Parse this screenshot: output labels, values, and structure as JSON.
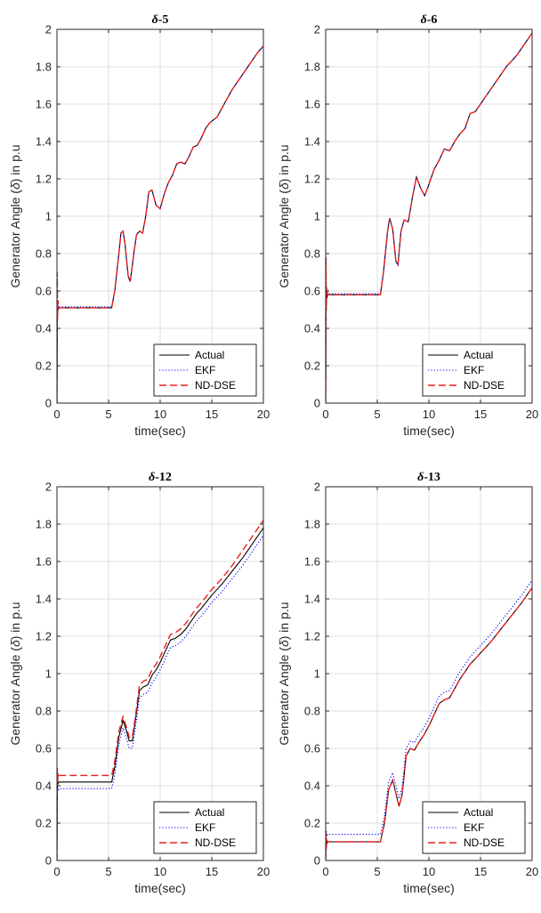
{
  "chart_data": [
    {
      "type": "line",
      "title_symbol": "δ",
      "title_suffix": "-5",
      "ylabel_pre": "Generator Angle (",
      "ylabel_symbol": "δ",
      "ylabel_post": ") in p.u",
      "xlabel": "time(sec)",
      "xlim": [
        0,
        20
      ],
      "ylim": [
        0,
        2
      ],
      "xticks": [
        0,
        5,
        10,
        15,
        20
      ],
      "yticks": [
        0,
        0.2,
        0.4,
        0.6,
        0.8,
        1,
        1.2,
        1.4,
        1.6,
        1.8,
        2
      ],
      "grid": true,
      "legend_position": "bottom-right",
      "series": [
        {
          "name": "Actual",
          "color": "#000000",
          "dash": "solid",
          "x": [
            0,
            0.05,
            0.1,
            0.2,
            5.3,
            5.6,
            6.0,
            6.2,
            6.4,
            6.6,
            6.9,
            7.1,
            7.4,
            7.7,
            8.0,
            8.3,
            8.6,
            8.9,
            9.2,
            9.6,
            10.0,
            10.4,
            10.8,
            11.2,
            11.6,
            12.0,
            12.4,
            12.8,
            13.2,
            13.6,
            14.0,
            14.4,
            14.8,
            15.5,
            16.0,
            16.5,
            17.0,
            17.5,
            18.0,
            18.5,
            19.0,
            19.5,
            20
          ],
          "y": [
            0.0,
            0.53,
            0.5,
            0.51,
            0.51,
            0.6,
            0.8,
            0.91,
            0.92,
            0.85,
            0.68,
            0.65,
            0.78,
            0.9,
            0.92,
            0.91,
            1.0,
            1.13,
            1.14,
            1.06,
            1.04,
            1.12,
            1.18,
            1.22,
            1.28,
            1.29,
            1.28,
            1.32,
            1.37,
            1.38,
            1.42,
            1.47,
            1.5,
            1.53,
            1.58,
            1.63,
            1.68,
            1.72,
            1.76,
            1.8,
            1.84,
            1.88,
            1.91
          ]
        },
        {
          "name": "EKF",
          "color": "#0000ff",
          "dash": "dotted",
          "x": [
            0,
            0.05,
            0.1,
            0.2,
            5.3,
            5.6,
            6.0,
            6.2,
            6.4,
            6.6,
            6.9,
            7.1,
            7.4,
            7.7,
            8.0,
            8.3,
            8.6,
            8.9,
            9.2,
            9.6,
            10.0,
            10.4,
            10.8,
            11.2,
            11.6,
            12.0,
            12.4,
            12.8,
            13.2,
            13.6,
            14.0,
            14.4,
            14.8,
            15.5,
            16.0,
            16.5,
            17.0,
            17.5,
            18.0,
            18.5,
            19.0,
            19.5,
            20
          ],
          "y": [
            0.0,
            0.55,
            0.5,
            0.515,
            0.515,
            0.6,
            0.8,
            0.91,
            0.92,
            0.85,
            0.68,
            0.65,
            0.78,
            0.9,
            0.92,
            0.91,
            1.0,
            1.13,
            1.14,
            1.06,
            1.04,
            1.12,
            1.18,
            1.22,
            1.28,
            1.29,
            1.28,
            1.32,
            1.37,
            1.38,
            1.42,
            1.47,
            1.5,
            1.53,
            1.58,
            1.63,
            1.68,
            1.72,
            1.76,
            1.8,
            1.84,
            1.88,
            1.91
          ]
        },
        {
          "name": "ND-DSE",
          "color": "#e8201f",
          "dash": "dashed",
          "x": [
            0,
            0.03,
            0.06,
            0.1,
            0.2,
            5.3,
            5.6,
            6.0,
            6.2,
            6.4,
            6.6,
            6.9,
            7.1,
            7.4,
            7.7,
            8.0,
            8.3,
            8.6,
            8.9,
            9.2,
            9.6,
            10.0,
            10.4,
            10.8,
            11.2,
            11.6,
            12.0,
            12.4,
            12.8,
            13.2,
            13.6,
            14.0,
            14.4,
            14.8,
            15.5,
            16.0,
            16.5,
            17.0,
            17.5,
            18.0,
            18.5,
            19.0,
            19.5,
            20
          ],
          "y": [
            0.0,
            0.7,
            0.45,
            0.55,
            0.51,
            0.51,
            0.6,
            0.8,
            0.91,
            0.92,
            0.85,
            0.68,
            0.65,
            0.78,
            0.9,
            0.92,
            0.91,
            1.0,
            1.13,
            1.14,
            1.06,
            1.04,
            1.12,
            1.18,
            1.22,
            1.28,
            1.29,
            1.28,
            1.32,
            1.37,
            1.38,
            1.42,
            1.47,
            1.5,
            1.53,
            1.58,
            1.63,
            1.68,
            1.72,
            1.76,
            1.8,
            1.84,
            1.88,
            1.91
          ]
        }
      ]
    },
    {
      "type": "line",
      "title_symbol": "δ",
      "title_suffix": "-6",
      "ylabel_pre": "Generator Angle (",
      "ylabel_symbol": "δ",
      "ylabel_post": ") in p.u",
      "xlabel": "time(sec)",
      "xlim": [
        0,
        20
      ],
      "ylim": [
        0,
        2
      ],
      "xticks": [
        0,
        5,
        10,
        15,
        20
      ],
      "yticks": [
        0,
        0.2,
        0.4,
        0.6,
        0.8,
        1,
        1.2,
        1.4,
        1.6,
        1.8,
        2
      ],
      "grid": true,
      "legend_position": "bottom-right",
      "series": [
        {
          "name": "Actual",
          "color": "#000000",
          "dash": "solid",
          "x": [
            0,
            0.05,
            0.1,
            0.2,
            5.3,
            5.6,
            6.0,
            6.2,
            6.5,
            6.8,
            7.0,
            7.3,
            7.6,
            8.0,
            8.4,
            8.8,
            9.2,
            9.6,
            10.0,
            10.5,
            11.0,
            11.5,
            12.0,
            12.5,
            13.0,
            13.5,
            14.0,
            14.5,
            15.0,
            15.5,
            16.0,
            16.5,
            17.0,
            17.5,
            18.0,
            18.5,
            19.0,
            19.5,
            20
          ],
          "y": [
            0.0,
            0.6,
            0.56,
            0.58,
            0.58,
            0.7,
            0.92,
            0.99,
            0.93,
            0.76,
            0.74,
            0.92,
            0.98,
            0.97,
            1.1,
            1.21,
            1.15,
            1.11,
            1.17,
            1.25,
            1.3,
            1.36,
            1.35,
            1.4,
            1.44,
            1.47,
            1.55,
            1.56,
            1.6,
            1.64,
            1.68,
            1.72,
            1.76,
            1.8,
            1.83,
            1.86,
            1.9,
            1.94,
            1.98
          ]
        },
        {
          "name": "EKF",
          "color": "#0000ff",
          "dash": "dotted",
          "x": [
            0,
            0.05,
            0.1,
            0.2,
            5.3,
            5.6,
            6.0,
            6.2,
            6.5,
            6.8,
            7.0,
            7.3,
            7.6,
            8.0,
            8.4,
            8.8,
            9.2,
            9.6,
            10.0,
            10.5,
            11.0,
            11.5,
            12.0,
            12.5,
            13.0,
            13.5,
            14.0,
            14.5,
            15.0,
            15.5,
            16.0,
            16.5,
            17.0,
            17.5,
            18.0,
            18.5,
            19.0,
            19.5,
            20
          ],
          "y": [
            0.0,
            0.62,
            0.56,
            0.585,
            0.585,
            0.7,
            0.92,
            0.99,
            0.93,
            0.76,
            0.74,
            0.92,
            0.98,
            0.97,
            1.1,
            1.21,
            1.15,
            1.11,
            1.17,
            1.25,
            1.3,
            1.36,
            1.35,
            1.4,
            1.44,
            1.47,
            1.55,
            1.56,
            1.6,
            1.64,
            1.68,
            1.72,
            1.76,
            1.8,
            1.83,
            1.86,
            1.9,
            1.94,
            1.98
          ]
        },
        {
          "name": "ND-DSE",
          "color": "#e8201f",
          "dash": "dashed",
          "x": [
            0,
            0.03,
            0.06,
            0.1,
            0.2,
            5.3,
            5.6,
            6.0,
            6.2,
            6.5,
            6.8,
            7.0,
            7.3,
            7.6,
            8.0,
            8.4,
            8.8,
            9.2,
            9.6,
            10.0,
            10.5,
            11.0,
            11.5,
            12.0,
            12.5,
            13.0,
            13.5,
            14.0,
            14.5,
            15.0,
            15.5,
            16.0,
            16.5,
            17.0,
            17.5,
            18.0,
            18.5,
            19.0,
            19.5,
            20
          ],
          "y": [
            0.0,
            0.78,
            0.5,
            0.62,
            0.58,
            0.58,
            0.7,
            0.92,
            0.99,
            0.93,
            0.76,
            0.74,
            0.92,
            0.98,
            0.97,
            1.1,
            1.21,
            1.15,
            1.11,
            1.17,
            1.25,
            1.3,
            1.36,
            1.35,
            1.4,
            1.44,
            1.47,
            1.55,
            1.56,
            1.6,
            1.64,
            1.68,
            1.72,
            1.76,
            1.8,
            1.83,
            1.86,
            1.9,
            1.94,
            1.98
          ]
        }
      ]
    },
    {
      "type": "line",
      "title_symbol": "δ",
      "title_suffix": "-12",
      "ylabel_pre": "Generator Angle (",
      "ylabel_symbol": "δ",
      "ylabel_post": ") in p.u",
      "xlabel": "time(sec)",
      "xlim": [
        0,
        20
      ],
      "ylim": [
        0,
        2
      ],
      "xticks": [
        0,
        5,
        10,
        15,
        20
      ],
      "yticks": [
        0,
        0.2,
        0.4,
        0.6,
        0.8,
        1,
        1.2,
        1.4,
        1.6,
        1.8,
        2
      ],
      "grid": true,
      "legend_position": "bottom-right",
      "series": [
        {
          "name": "Actual",
          "color": "#000000",
          "dash": "solid",
          "x": [
            0,
            0.05,
            0.1,
            0.2,
            5.3,
            5.6,
            6.0,
            6.4,
            6.7,
            7.0,
            7.3,
            7.6,
            8.0,
            8.4,
            8.8,
            9.2,
            9.6,
            10.0,
            10.5,
            11.0,
            11.5,
            12.0,
            12.5,
            13.0,
            13.5,
            14.0,
            15.0,
            16.0,
            17.0,
            18.0,
            19.0,
            20
          ],
          "y": [
            0.0,
            0.44,
            0.41,
            0.42,
            0.42,
            0.5,
            0.66,
            0.75,
            0.7,
            0.64,
            0.64,
            0.75,
            0.91,
            0.93,
            0.94,
            0.99,
            1.02,
            1.06,
            1.12,
            1.18,
            1.19,
            1.21,
            1.24,
            1.28,
            1.32,
            1.35,
            1.42,
            1.48,
            1.55,
            1.62,
            1.7,
            1.78
          ]
        },
        {
          "name": "EKF",
          "color": "#0000ff",
          "dash": "dotted",
          "x": [
            0,
            0.05,
            0.1,
            0.2,
            5.3,
            5.6,
            6.0,
            6.4,
            6.7,
            7.0,
            7.3,
            7.6,
            8.0,
            8.4,
            8.8,
            9.2,
            9.6,
            10.0,
            10.5,
            11.0,
            11.5,
            12.0,
            12.5,
            13.0,
            13.5,
            14.0,
            15.0,
            16.0,
            17.0,
            18.0,
            19.0,
            20
          ],
          "y": [
            0.0,
            0.4,
            0.37,
            0.385,
            0.385,
            0.46,
            0.62,
            0.71,
            0.66,
            0.6,
            0.6,
            0.71,
            0.87,
            0.89,
            0.9,
            0.95,
            0.98,
            1.02,
            1.08,
            1.14,
            1.15,
            1.17,
            1.2,
            1.24,
            1.28,
            1.31,
            1.38,
            1.44,
            1.51,
            1.58,
            1.66,
            1.74
          ]
        },
        {
          "name": "ND-DSE",
          "color": "#e8201f",
          "dash": "dashed",
          "x": [
            0,
            0.03,
            0.06,
            0.1,
            0.2,
            5.3,
            5.6,
            6.0,
            6.4,
            6.7,
            7.0,
            7.3,
            7.6,
            8.0,
            8.4,
            8.8,
            9.2,
            9.6,
            10.0,
            10.5,
            11.0,
            11.5,
            12.0,
            12.5,
            13.0,
            13.5,
            14.0,
            15.0,
            16.0,
            17.0,
            18.0,
            19.0,
            20
          ],
          "y": [
            0.0,
            0.5,
            0.4,
            0.47,
            0.455,
            0.455,
            0.53,
            0.69,
            0.77,
            0.72,
            0.66,
            0.66,
            0.77,
            0.94,
            0.96,
            0.97,
            1.02,
            1.05,
            1.09,
            1.15,
            1.21,
            1.22,
            1.24,
            1.27,
            1.31,
            1.35,
            1.38,
            1.45,
            1.51,
            1.58,
            1.66,
            1.74,
            1.82
          ]
        }
      ]
    },
    {
      "type": "line",
      "title_symbol": "δ",
      "title_suffix": "-13",
      "ylabel_pre": "Generator Angle (",
      "ylabel_symbol": "δ",
      "ylabel_post": ") in p.u",
      "xlabel": "time(sec)",
      "xlim": [
        0,
        20
      ],
      "ylim": [
        0,
        2
      ],
      "xticks": [
        0,
        5,
        10,
        15,
        20
      ],
      "yticks": [
        0,
        0.2,
        0.4,
        0.6,
        0.8,
        1,
        1.2,
        1.4,
        1.6,
        1.8,
        2
      ],
      "grid": true,
      "legend_position": "bottom-right",
      "series": [
        {
          "name": "Actual",
          "color": "#000000",
          "dash": "solid",
          "x": [
            0,
            0.05,
            0.1,
            0.2,
            5.3,
            5.7,
            6.1,
            6.5,
            6.8,
            7.1,
            7.4,
            7.8,
            8.2,
            8.6,
            9.0,
            9.5,
            10.0,
            10.5,
            11.0,
            11.5,
            12.0,
            12.5,
            13.0,
            14.0,
            15.0,
            16.0,
            17.0,
            18.0,
            19.0,
            20
          ],
          "y": [
            0.0,
            0.12,
            0.09,
            0.1,
            0.1,
            0.2,
            0.38,
            0.43,
            0.36,
            0.29,
            0.35,
            0.56,
            0.6,
            0.59,
            0.63,
            0.67,
            0.72,
            0.78,
            0.84,
            0.86,
            0.87,
            0.92,
            0.97,
            1.05,
            1.11,
            1.17,
            1.24,
            1.31,
            1.38,
            1.46
          ]
        },
        {
          "name": "EKF",
          "color": "#0000ff",
          "dash": "dotted",
          "x": [
            0,
            0.05,
            0.1,
            0.2,
            5.3,
            5.7,
            6.1,
            6.5,
            6.8,
            7.1,
            7.4,
            7.8,
            8.2,
            8.6,
            9.0,
            9.5,
            10.0,
            10.5,
            11.0,
            11.5,
            12.0,
            12.5,
            13.0,
            14.0,
            15.0,
            16.0,
            17.0,
            18.0,
            19.0,
            20
          ],
          "y": [
            0.0,
            0.16,
            0.13,
            0.14,
            0.14,
            0.24,
            0.42,
            0.47,
            0.4,
            0.33,
            0.39,
            0.6,
            0.64,
            0.63,
            0.67,
            0.71,
            0.76,
            0.82,
            0.88,
            0.9,
            0.91,
            0.96,
            1.01,
            1.09,
            1.15,
            1.21,
            1.28,
            1.35,
            1.42,
            1.5
          ]
        },
        {
          "name": "ND-DSE",
          "color": "#e8201f",
          "dash": "dashed",
          "x": [
            0,
            0.03,
            0.06,
            0.1,
            0.2,
            5.3,
            5.7,
            6.1,
            6.5,
            6.8,
            7.1,
            7.4,
            7.8,
            8.2,
            8.6,
            9.0,
            9.5,
            10.0,
            10.5,
            11.0,
            11.5,
            12.0,
            12.5,
            13.0,
            14.0,
            15.0,
            16.0,
            17.0,
            18.0,
            19.0,
            20
          ],
          "y": [
            0.0,
            0.15,
            0.06,
            0.11,
            0.1,
            0.1,
            0.2,
            0.38,
            0.43,
            0.36,
            0.29,
            0.35,
            0.56,
            0.6,
            0.59,
            0.63,
            0.67,
            0.72,
            0.78,
            0.84,
            0.86,
            0.87,
            0.92,
            0.97,
            1.05,
            1.11,
            1.17,
            1.24,
            1.31,
            1.38,
            1.46
          ]
        }
      ]
    }
  ]
}
